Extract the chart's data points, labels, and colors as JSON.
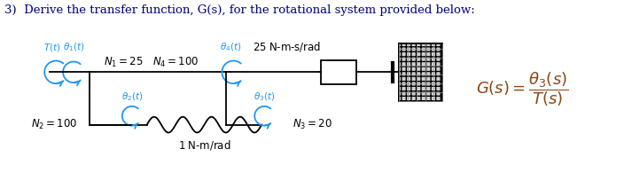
{
  "bg_color": "#ffffff",
  "cyan": "#2196F3",
  "black": "#000000",
  "brown": "#8B4513",
  "title": "3)  Derive the transfer function, G(s), for the rotational system provided below:"
}
